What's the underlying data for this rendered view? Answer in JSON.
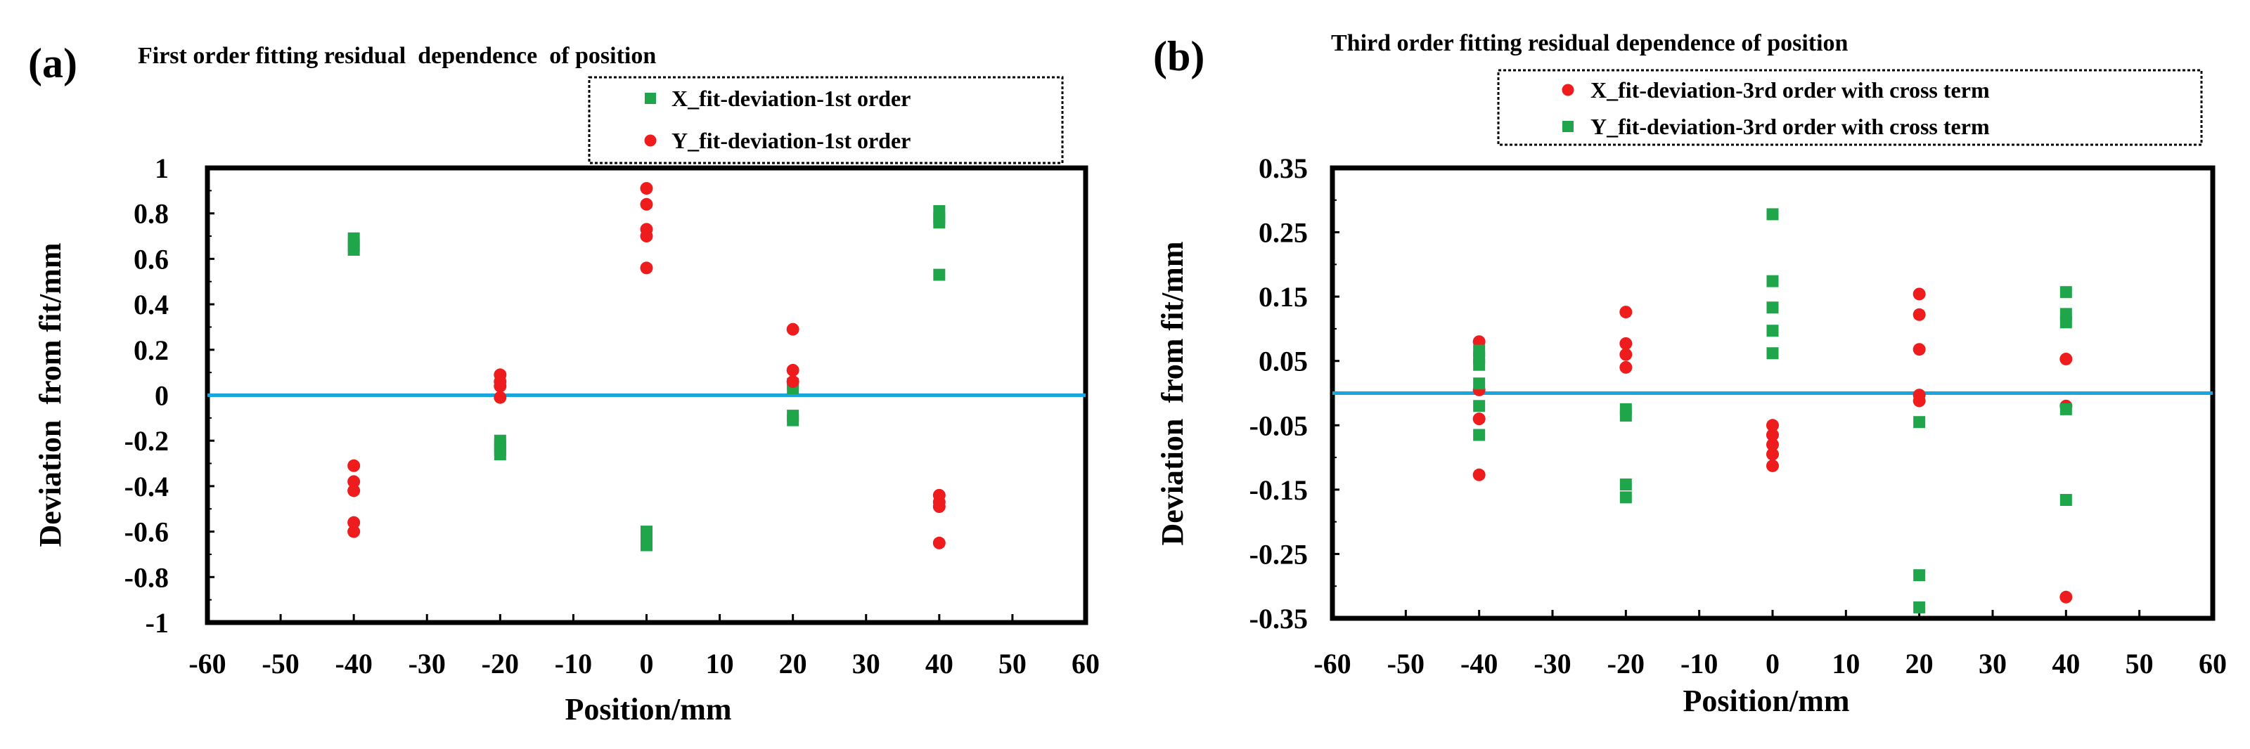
{
  "chart_data": [
    {
      "type": "scatter",
      "panel_label": "(a)",
      "title": "First order fitting residual  dependence  of position",
      "xlabel": "Position/mm",
      "ylabel": "Deviation  from fit/mm",
      "xlim": [
        -60,
        60
      ],
      "ylim": [
        -1,
        1
      ],
      "xticks": [
        -60,
        -50,
        -40,
        -30,
        -20,
        -10,
        0,
        10,
        20,
        30,
        40,
        50,
        60
      ],
      "yticks": [
        -1,
        -0.8,
        -0.6,
        -0.4,
        -0.2,
        0,
        0.2,
        0.4,
        0.6,
        0.8,
        1
      ],
      "ytick_labels": [
        "-1",
        "-0.8",
        "-0.6",
        "-0.4",
        "-0.2",
        "0",
        "0.2",
        "0.4",
        "0.6",
        "0.8",
        "1"
      ],
      "reference_line": {
        "y": 0,
        "color": "#1aa6dd"
      },
      "legend_position": "top-right",
      "series": [
        {
          "name": "X_fit-deviation-1st order",
          "marker": "square",
          "color": "#1fa64a",
          "points": [
            [
              -40,
              0.64
            ],
            [
              -40,
              0.66
            ],
            [
              -40,
              0.69
            ],
            [
              -20,
              -0.2
            ],
            [
              -20,
              -0.22
            ],
            [
              -20,
              -0.24
            ],
            [
              -20,
              -0.26
            ],
            [
              0,
              -0.6
            ],
            [
              0,
              -0.62
            ],
            [
              0,
              -0.64
            ],
            [
              0,
              -0.66
            ],
            [
              20,
              0.05
            ],
            [
              20,
              0.03
            ],
            [
              20,
              -0.09
            ],
            [
              20,
              -0.11
            ],
            [
              40,
              0.81
            ],
            [
              40,
              0.78
            ],
            [
              40,
              0.76
            ],
            [
              40,
              0.53
            ]
          ]
        },
        {
          "name": "Y_fit-deviation-1st order",
          "marker": "circle",
          "color": "#ee1c1c",
          "points": [
            [
              -40,
              -0.31
            ],
            [
              -40,
              -0.38
            ],
            [
              -40,
              -0.42
            ],
            [
              -40,
              -0.56
            ],
            [
              -40,
              -0.6
            ],
            [
              -20,
              0.09
            ],
            [
              -20,
              0.06
            ],
            [
              -20,
              0.04
            ],
            [
              -20,
              -0.01
            ],
            [
              0,
              0.91
            ],
            [
              0,
              0.84
            ],
            [
              0,
              0.73
            ],
            [
              0,
              0.7
            ],
            [
              0,
              0.56
            ],
            [
              20,
              0.29
            ],
            [
              20,
              0.11
            ],
            [
              20,
              0.06
            ],
            [
              40,
              -0.44
            ],
            [
              40,
              -0.47
            ],
            [
              40,
              -0.49
            ],
            [
              40,
              -0.65
            ]
          ]
        }
      ]
    },
    {
      "type": "scatter",
      "panel_label": "(b)",
      "title": "Third order fitting residual dependence of position",
      "xlabel": "Position/mm",
      "ylabel": "Deviation  from fit/mm",
      "xlim": [
        -60,
        60
      ],
      "ylim": [
        -0.35,
        0.35
      ],
      "xticks": [
        -60,
        -50,
        -40,
        -30,
        -20,
        -10,
        0,
        10,
        20,
        30,
        40,
        50,
        60
      ],
      "yticks": [
        -0.35,
        -0.25,
        -0.15,
        -0.05,
        0.05,
        0.15,
        0.25,
        0.35
      ],
      "ytick_labels": [
        "-0.35",
        "-0.25",
        "-0.15",
        "-0.05",
        "0.05",
        "0.15",
        "0.25",
        "0.35"
      ],
      "reference_line": {
        "y": 0,
        "color": "#1aa6dd"
      },
      "legend_position": "top-right",
      "series": [
        {
          "name": "X_fit-deviation-3rd order with cross term",
          "marker": "circle",
          "color": "#ee1c1c",
          "points": [
            [
              -40,
              0.08
            ],
            [
              -40,
              0.005
            ],
            [
              -40,
              -0.04
            ],
            [
              -40,
              -0.127
            ],
            [
              -20,
              0.126
            ],
            [
              -20,
              0.077
            ],
            [
              -20,
              0.06
            ],
            [
              -20,
              0.04
            ],
            [
              0,
              -0.05
            ],
            [
              0,
              -0.065
            ],
            [
              0,
              -0.08
            ],
            [
              0,
              -0.095
            ],
            [
              0,
              -0.113
            ],
            [
              20,
              0.154
            ],
            [
              20,
              0.122
            ],
            [
              20,
              0.068
            ],
            [
              20,
              -0.003
            ],
            [
              20,
              -0.012
            ],
            [
              40,
              0.053
            ],
            [
              40,
              -0.02
            ],
            [
              40,
              -0.317
            ]
          ]
        },
        {
          "name": "Y_fit-deviation-3rd order with cross term",
          "marker": "square",
          "color": "#1fa64a",
          "points": [
            [
              -40,
              0.066
            ],
            [
              -40,
              0.055
            ],
            [
              -40,
              0.044
            ],
            [
              -40,
              0.015
            ],
            [
              -40,
              -0.02
            ],
            [
              -40,
              -0.065
            ],
            [
              -20,
              -0.025
            ],
            [
              -20,
              -0.035
            ],
            [
              -20,
              -0.142
            ],
            [
              -20,
              -0.162
            ],
            [
              0,
              0.278
            ],
            [
              0,
              0.174
            ],
            [
              0,
              0.133
            ],
            [
              0,
              0.097
            ],
            [
              0,
              0.062
            ],
            [
              20,
              -0.045
            ],
            [
              20,
              -0.283
            ],
            [
              20,
              -0.333
            ],
            [
              40,
              0.157
            ],
            [
              40,
              0.123
            ],
            [
              40,
              0.11
            ],
            [
              40,
              -0.025
            ],
            [
              40,
              -0.166
            ]
          ]
        }
      ]
    }
  ]
}
